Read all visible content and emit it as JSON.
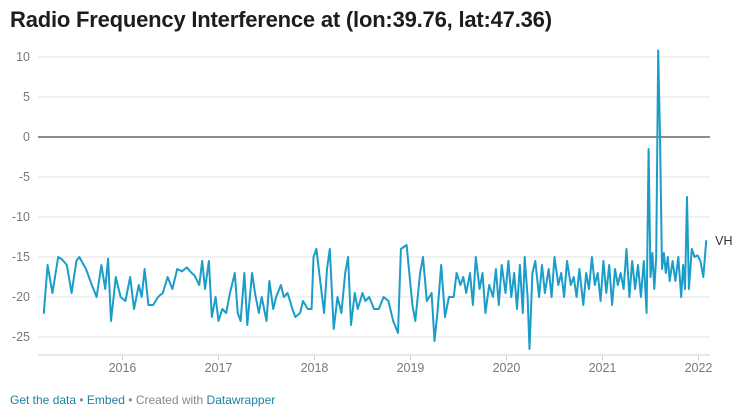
{
  "title": "Radio Frequency Interference at (lon:39.76, lat:47.36)",
  "footer": {
    "get_data": "Get the data",
    "sep": " • ",
    "embed": "Embed",
    "created_with": "Created with ",
    "datawrapper": "Datawrapper"
  },
  "colors": {
    "line": "#1a9dc9",
    "grid": "#e3e3e3",
    "zero": "#1a1a1a",
    "link": "#1d81a2"
  },
  "chart_data": {
    "type": "line",
    "title": "Radio Frequency Interference at (lon:39.76, lat:47.36)",
    "xlabel": "",
    "ylabel": "",
    "xlim": [
      2015.12,
      2022.12
    ],
    "ylim": [
      -26.5,
      11
    ],
    "y_ticks": [
      10,
      5,
      0,
      -5,
      -10,
      -15,
      -20,
      -25
    ],
    "x_ticks": [
      2016,
      2017,
      2018,
      2019,
      2020,
      2021,
      2022
    ],
    "grid": true,
    "legend": "none",
    "series": [
      {
        "name": "VH",
        "points": [
          [
            2015.18,
            -22
          ],
          [
            2015.22,
            -16
          ],
          [
            2015.27,
            -19.5
          ],
          [
            2015.33,
            -15
          ],
          [
            2015.37,
            -15.3
          ],
          [
            2015.42,
            -16
          ],
          [
            2015.47,
            -19.5
          ],
          [
            2015.52,
            -15.5
          ],
          [
            2015.55,
            -15
          ],
          [
            2015.62,
            -16.5
          ],
          [
            2015.68,
            -18.5
          ],
          [
            2015.73,
            -20
          ],
          [
            2015.78,
            -16
          ],
          [
            2015.82,
            -19
          ],
          [
            2015.85,
            -15.2
          ],
          [
            2015.88,
            -23
          ],
          [
            2015.93,
            -17.5
          ],
          [
            2015.98,
            -20
          ],
          [
            2016.03,
            -20.5
          ],
          [
            2016.08,
            -17.5
          ],
          [
            2016.12,
            -21.5
          ],
          [
            2016.17,
            -18.5
          ],
          [
            2016.2,
            -20
          ],
          [
            2016.23,
            -16.5
          ],
          [
            2016.27,
            -21
          ],
          [
            2016.32,
            -21
          ],
          [
            2016.37,
            -20
          ],
          [
            2016.42,
            -19.5
          ],
          [
            2016.47,
            -17.5
          ],
          [
            2016.52,
            -19
          ],
          [
            2016.57,
            -16.5
          ],
          [
            2016.62,
            -16.8
          ],
          [
            2016.67,
            -16.3
          ],
          [
            2016.72,
            -17
          ],
          [
            2016.75,
            -17.3
          ],
          [
            2016.8,
            -18.5
          ],
          [
            2016.83,
            -15.5
          ],
          [
            2016.86,
            -19
          ],
          [
            2016.9,
            -15.5
          ],
          [
            2016.93,
            -22.5
          ],
          [
            2016.97,
            -20
          ],
          [
            2017.0,
            -23
          ],
          [
            2017.04,
            -21.5
          ],
          [
            2017.08,
            -22
          ],
          [
            2017.12,
            -19.5
          ],
          [
            2017.17,
            -17
          ],
          [
            2017.2,
            -22
          ],
          [
            2017.23,
            -23
          ],
          [
            2017.27,
            -17
          ],
          [
            2017.3,
            -23.5
          ],
          [
            2017.35,
            -17
          ],
          [
            2017.38,
            -19.5
          ],
          [
            2017.42,
            -22
          ],
          [
            2017.45,
            -20
          ],
          [
            2017.5,
            -23
          ],
          [
            2017.53,
            -18
          ],
          [
            2017.57,
            -21.5
          ],
          [
            2017.6,
            -20
          ],
          [
            2017.65,
            -18.5
          ],
          [
            2017.68,
            -20
          ],
          [
            2017.72,
            -19.5
          ],
          [
            2017.77,
            -21.5
          ],
          [
            2017.8,
            -22.5
          ],
          [
            2017.85,
            -22
          ],
          [
            2017.88,
            -20.5
          ],
          [
            2017.93,
            -21.5
          ],
          [
            2017.97,
            -21.5
          ],
          [
            2017.99,
            -15
          ],
          [
            2018.02,
            -14
          ],
          [
            2018.06,
            -18
          ],
          [
            2018.1,
            -22
          ],
          [
            2018.13,
            -16.5
          ],
          [
            2018.16,
            -14
          ],
          [
            2018.2,
            -24
          ],
          [
            2018.24,
            -20
          ],
          [
            2018.28,
            -22
          ],
          [
            2018.32,
            -17
          ],
          [
            2018.35,
            -15
          ],
          [
            2018.38,
            -23.5
          ],
          [
            2018.42,
            -19.5
          ],
          [
            2018.45,
            -21.5
          ],
          [
            2018.5,
            -19.5
          ],
          [
            2018.53,
            -20.5
          ],
          [
            2018.57,
            -20
          ],
          [
            2018.62,
            -21.5
          ],
          [
            2018.67,
            -21.5
          ],
          [
            2018.72,
            -20
          ],
          [
            2018.77,
            -20.5
          ],
          [
            2018.82,
            -23
          ],
          [
            2018.87,
            -24.5
          ],
          [
            2018.9,
            -14
          ],
          [
            2018.96,
            -13.5
          ],
          [
            2019.02,
            -21
          ],
          [
            2019.05,
            -23
          ],
          [
            2019.1,
            -17
          ],
          [
            2019.13,
            -15
          ],
          [
            2019.17,
            -20.5
          ],
          [
            2019.22,
            -19.5
          ],
          [
            2019.25,
            -25.5
          ],
          [
            2019.28,
            -22
          ],
          [
            2019.32,
            -16
          ],
          [
            2019.36,
            -22.5
          ],
          [
            2019.4,
            -20
          ],
          [
            2019.45,
            -20
          ],
          [
            2019.48,
            -17
          ],
          [
            2019.52,
            -18.5
          ],
          [
            2019.55,
            -17.5
          ],
          [
            2019.58,
            -19.5
          ],
          [
            2019.62,
            -17
          ],
          [
            2019.65,
            -21
          ],
          [
            2019.68,
            -15
          ],
          [
            2019.72,
            -19
          ],
          [
            2019.75,
            -17
          ],
          [
            2019.78,
            -22
          ],
          [
            2019.82,
            -18.5
          ],
          [
            2019.86,
            -20
          ],
          [
            2019.89,
            -16.5
          ],
          [
            2019.92,
            -21
          ],
          [
            2019.95,
            -16
          ],
          [
            2019.99,
            -19.5
          ],
          [
            2020.02,
            -15.5
          ],
          [
            2020.05,
            -20
          ],
          [
            2020.08,
            -17
          ],
          [
            2020.11,
            -21.5
          ],
          [
            2020.14,
            -16
          ],
          [
            2020.17,
            -22
          ],
          [
            2020.19,
            -15
          ],
          [
            2020.22,
            -20
          ],
          [
            2020.24,
            -26.5
          ],
          [
            2020.27,
            -17
          ],
          [
            2020.3,
            -15.5
          ],
          [
            2020.34,
            -20
          ],
          [
            2020.37,
            -16
          ],
          [
            2020.4,
            -19.5
          ],
          [
            2020.44,
            -16.5
          ],
          [
            2020.47,
            -20
          ],
          [
            2020.5,
            -15
          ],
          [
            2020.54,
            -18.5
          ],
          [
            2020.57,
            -17
          ],
          [
            2020.6,
            -20
          ],
          [
            2020.63,
            -15.5
          ],
          [
            2020.67,
            -18.5
          ],
          [
            2020.7,
            -17.5
          ],
          [
            2020.73,
            -20
          ],
          [
            2020.76,
            -16.5
          ],
          [
            2020.8,
            -21
          ],
          [
            2020.83,
            -17
          ],
          [
            2020.86,
            -19
          ],
          [
            2020.89,
            -15
          ],
          [
            2020.92,
            -18.5
          ],
          [
            2020.95,
            -17
          ],
          [
            2020.98,
            -20.5
          ],
          [
            2021.01,
            -15.5
          ],
          [
            2021.04,
            -19.5
          ],
          [
            2021.07,
            -16
          ],
          [
            2021.1,
            -21
          ],
          [
            2021.13,
            -16.5
          ],
          [
            2021.16,
            -18.5
          ],
          [
            2021.19,
            -17
          ],
          [
            2021.22,
            -19
          ],
          [
            2021.25,
            -14
          ],
          [
            2021.28,
            -20
          ],
          [
            2021.31,
            -15.5
          ],
          [
            2021.34,
            -19
          ],
          [
            2021.37,
            -16
          ],
          [
            2021.4,
            -20
          ],
          [
            2021.43,
            -15.5
          ],
          [
            2021.46,
            -22
          ],
          [
            2021.48,
            -1.5
          ],
          [
            2021.5,
            -17.5
          ],
          [
            2021.52,
            -14.5
          ],
          [
            2021.54,
            -19
          ],
          [
            2021.56,
            -15
          ],
          [
            2021.58,
            10.8
          ],
          [
            2021.6,
            -0.5
          ],
          [
            2021.62,
            -16.5
          ],
          [
            2021.64,
            -14.5
          ],
          [
            2021.66,
            -17
          ],
          [
            2021.68,
            -15
          ],
          [
            2021.7,
            -18
          ],
          [
            2021.73,
            -15.5
          ],
          [
            2021.76,
            -18
          ],
          [
            2021.79,
            -15
          ],
          [
            2021.82,
            -20
          ],
          [
            2021.84,
            -16
          ],
          [
            2021.86,
            -19
          ],
          [
            2021.88,
            -7.5
          ],
          [
            2021.9,
            -19
          ],
          [
            2021.93,
            -14
          ],
          [
            2021.96,
            -15
          ],
          [
            2021.99,
            -14.8
          ],
          [
            2022.02,
            -15.5
          ],
          [
            2022.05,
            -17.5
          ],
          [
            2022.08,
            -13
          ]
        ]
      }
    ]
  }
}
